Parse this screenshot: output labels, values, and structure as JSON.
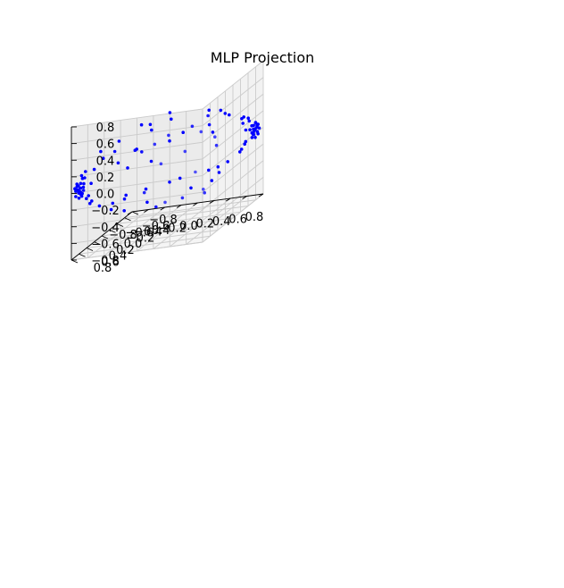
{
  "chart_data": {
    "type": "scatter",
    "title": "MLP Projection",
    "xlabel": "",
    "ylabel": "",
    "zlabel": "",
    "projection": "3d",
    "grid": true,
    "xlim": [
      -0.8,
      0.8
    ],
    "ylim": [
      -0.8,
      0.8
    ],
    "zlim": [
      -0.8,
      0.8
    ],
    "x_ticks": [
      0.8,
      0.6,
      0.4,
      0.2,
      0.0,
      -0.2,
      -0.4,
      -0.6,
      -0.8
    ],
    "x_tick_labels": [
      "0.8",
      "0.6",
      "0.4",
      "0.2",
      "0.0",
      "−0.2",
      "−0.4",
      "−0.6",
      "−0.8"
    ],
    "y_ticks": [
      -0.8,
      -0.6,
      -0.4,
      -0.2,
      0.0,
      0.2,
      0.4,
      0.6,
      0.8
    ],
    "y_tick_labels": [
      "−0.8",
      "−0.6",
      "−0.4",
      "−0.2",
      "0.0",
      "0.2",
      "0.4",
      "0.6",
      "0.8"
    ],
    "z_ticks": [
      0.8,
      0.6,
      0.4,
      0.2,
      0.0,
      -0.2,
      -0.4,
      -0.6,
      -0.8
    ],
    "z_tick_labels": [
      "0.8",
      "0.6",
      "0.4",
      "0.2",
      "0.0",
      "−0.2",
      "−0.4",
      "−0.6",
      "−0.8"
    ],
    "series": [
      {
        "color": "#0000ff",
        "marker": "dot",
        "points": [
          [
            0.72,
            -0.75,
            0.0
          ],
          [
            0.74,
            -0.72,
            0.02
          ],
          [
            0.73,
            -0.7,
            -0.04
          ],
          [
            0.7,
            -0.76,
            0.05
          ],
          [
            0.76,
            -0.73,
            -0.02
          ],
          [
            0.71,
            -0.69,
            0.07
          ],
          [
            0.75,
            -0.77,
            -0.06
          ],
          [
            0.69,
            -0.74,
            -0.03
          ],
          [
            0.73,
            -0.79,
            0.03
          ],
          [
            0.77,
            -0.7,
            0.04
          ],
          [
            0.7,
            -0.72,
            -0.08
          ],
          [
            0.74,
            -0.68,
            0.0
          ],
          [
            0.72,
            -0.77,
            0.08
          ],
          [
            0.68,
            -0.71,
            0.02
          ],
          [
            0.76,
            -0.75,
            0.06
          ],
          [
            0.71,
            -0.73,
            -0.05
          ],
          [
            0.75,
            -0.71,
            0.09
          ],
          [
            0.73,
            -0.74,
            -0.09
          ],
          [
            0.69,
            -0.78,
            0.0
          ],
          [
            0.77,
            -0.76,
            0.01
          ],
          [
            0.66,
            -0.73,
            0.12
          ],
          [
            0.65,
            -0.66,
            -0.1
          ],
          [
            0.64,
            -0.75,
            0.15
          ],
          [
            0.62,
            -0.7,
            -0.14
          ],
          [
            0.67,
            -0.62,
            0.05
          ],
          [
            0.6,
            -0.72,
            0.18
          ],
          [
            0.61,
            -0.64,
            -0.18
          ],
          [
            0.58,
            -0.74,
            0.1
          ],
          [
            0.63,
            -0.6,
            0.2
          ],
          [
            0.57,
            -0.68,
            -0.22
          ],
          [
            -0.75,
            0.72,
            0.0
          ],
          [
            -0.72,
            0.74,
            0.03
          ],
          [
            -0.7,
            0.73,
            -0.04
          ],
          [
            -0.76,
            0.7,
            0.05
          ],
          [
            -0.73,
            0.76,
            -0.02
          ],
          [
            -0.69,
            0.71,
            0.07
          ],
          [
            -0.77,
            0.75,
            -0.06
          ],
          [
            -0.74,
            0.69,
            -0.03
          ],
          [
            -0.79,
            0.73,
            0.03
          ],
          [
            -0.7,
            0.77,
            0.04
          ],
          [
            -0.72,
            0.7,
            -0.08
          ],
          [
            -0.68,
            0.74,
            0.0
          ],
          [
            -0.77,
            0.72,
            0.08
          ],
          [
            -0.71,
            0.68,
            0.02
          ],
          [
            -0.75,
            0.76,
            0.06
          ],
          [
            -0.73,
            0.71,
            -0.05
          ],
          [
            -0.71,
            0.75,
            0.09
          ],
          [
            -0.74,
            0.73,
            -0.09
          ],
          [
            -0.78,
            0.69,
            0.0
          ],
          [
            -0.76,
            0.77,
            0.01
          ],
          [
            -0.73,
            0.66,
            0.12
          ],
          [
            -0.66,
            0.65,
            -0.1
          ],
          [
            -0.75,
            0.64,
            0.15
          ],
          [
            -0.7,
            0.62,
            -0.14
          ],
          [
            -0.62,
            0.67,
            0.05
          ],
          [
            -0.72,
            0.6,
            0.18
          ],
          [
            -0.64,
            0.61,
            -0.18
          ],
          [
            -0.74,
            0.58,
            0.1
          ],
          [
            -0.6,
            0.63,
            0.2
          ],
          [
            -0.68,
            0.57,
            -0.22
          ],
          [
            0.5,
            -0.55,
            0.28
          ],
          [
            0.45,
            -0.62,
            -0.3
          ],
          [
            0.52,
            -0.4,
            0.35
          ],
          [
            0.4,
            -0.5,
            -0.38
          ],
          [
            0.35,
            -0.65,
            0.32
          ],
          [
            0.48,
            -0.3,
            -0.25
          ],
          [
            0.3,
            -0.45,
            0.4
          ],
          [
            0.42,
            -0.2,
            0.3
          ],
          [
            0.25,
            -0.55,
            -0.35
          ],
          [
            0.38,
            -0.35,
            -0.42
          ],
          [
            -0.55,
            0.5,
            0.28
          ],
          [
            -0.62,
            0.45,
            -0.3
          ],
          [
            -0.4,
            0.52,
            0.35
          ],
          [
            -0.5,
            0.4,
            -0.38
          ],
          [
            -0.65,
            0.35,
            0.32
          ],
          [
            -0.3,
            0.48,
            -0.25
          ],
          [
            -0.45,
            0.3,
            0.4
          ],
          [
            -0.2,
            0.42,
            0.3
          ],
          [
            -0.55,
            0.25,
            -0.35
          ],
          [
            -0.35,
            0.38,
            -0.42
          ],
          [
            0.55,
            0.3,
            0.38
          ],
          [
            0.2,
            0.4,
            0.42
          ],
          [
            -0.1,
            0.2,
            0.45
          ],
          [
            0.35,
            0.1,
            0.4
          ],
          [
            0.0,
            -0.1,
            0.46
          ],
          [
            -0.3,
            -0.2,
            0.4
          ],
          [
            -0.5,
            -0.4,
            0.35
          ],
          [
            0.1,
            0.55,
            0.38
          ],
          [
            -0.2,
            -0.5,
            0.42
          ],
          [
            0.45,
            -0.1,
            0.44
          ],
          [
            0.3,
            0.25,
            -0.4
          ],
          [
            0.5,
            0.1,
            -0.42
          ],
          [
            0.0,
            0.3,
            -0.45
          ],
          [
            -0.2,
            0.1,
            -0.44
          ],
          [
            0.15,
            -0.3,
            -0.46
          ],
          [
            -0.4,
            -0.3,
            -0.4
          ],
          [
            -0.55,
            -0.1,
            -0.38
          ],
          [
            0.6,
            0.35,
            -0.3
          ],
          [
            -0.1,
            -0.55,
            -0.4
          ],
          [
            0.25,
            0.6,
            -0.32
          ],
          [
            0.6,
            0.0,
            0.1
          ],
          [
            0.55,
            0.45,
            -0.05
          ],
          [
            0.2,
            0.6,
            0.15
          ],
          [
            -0.05,
            0.5,
            -0.2
          ],
          [
            -0.35,
            0.05,
            0.2
          ],
          [
            -0.6,
            -0.25,
            -0.1
          ],
          [
            -0.25,
            -0.6,
            0.05
          ],
          [
            0.1,
            -0.2,
            0.25
          ],
          [
            0.4,
            0.4,
            0.2
          ],
          [
            -0.45,
            -0.55,
            -0.15
          ],
          [
            0.65,
            0.15,
            0.25
          ],
          [
            0.05,
            0.05,
            -0.25
          ],
          [
            -0.15,
            0.35,
            0.25
          ],
          [
            0.3,
            -0.55,
            0.1
          ],
          [
            -0.6,
            0.0,
            0.05
          ]
        ]
      }
    ]
  }
}
